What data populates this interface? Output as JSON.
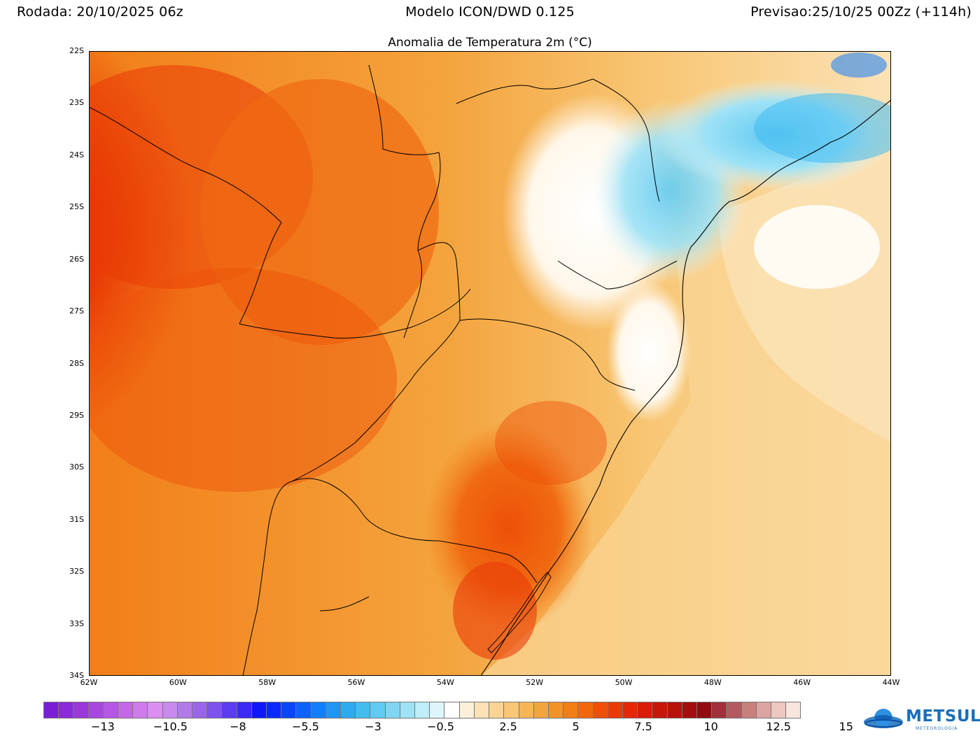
{
  "header": {
    "run": "Rodada: 20/10/2025 06z",
    "model": "Modelo ICON/DWD 0.125",
    "forecast": "Previsao:25/10/25 00Zz (+114h)"
  },
  "map": {
    "title": "Anomalia de Temperatura 2m (°C)",
    "lat_labels": [
      "22S",
      "23S",
      "24S",
      "25S",
      "26S",
      "27S",
      "28S",
      "29S",
      "30S",
      "31S",
      "32S",
      "33S",
      "34S"
    ],
    "lon_labels": [
      "62W",
      "60W",
      "58W",
      "56W",
      "54W",
      "52W",
      "50W",
      "48W",
      "46W",
      "44W"
    ],
    "lat_range": [
      -34,
      -22
    ],
    "lon_range": [
      -62,
      -44
    ]
  },
  "colorbar": {
    "colors": [
      "#7a1ed6",
      "#8a2ad8",
      "#9a38dc",
      "#a846e0",
      "#b657e4",
      "#c468e8",
      "#d07bec",
      "#da8ef0",
      "#c98aee",
      "#b27ae8",
      "#9a66e8",
      "#7e52ec",
      "#5c3cf0",
      "#3a2af4",
      "#1018f8",
      "#0a2aff",
      "#0a46ff",
      "#0c62ff",
      "#147efa",
      "#1e96f4",
      "#2eaaf0",
      "#44bcf0",
      "#60caf2",
      "#7ed6f4",
      "#9ee2f6",
      "#bdeef9",
      "#ddf6fc",
      "#ffffff",
      "#fdf0d8",
      "#fbe2b6",
      "#f9d494",
      "#f8c674",
      "#f6b658",
      "#f4a43e",
      "#f39228",
      "#f27e18",
      "#f0680e",
      "#ee5008",
      "#ea3a06",
      "#e42806",
      "#d81c08",
      "#c8160a",
      "#b8120c",
      "#a40e0e",
      "#900c10",
      "#a0303a",
      "#b45a5e",
      "#c8807c",
      "#dca4a0",
      "#ecc8c0",
      "#f8e6de"
    ],
    "labels": [
      "−13",
      "−10.5",
      "−8",
      "−5.5",
      "−3",
      "−0.5",
      "2.5",
      "5",
      "7.5",
      "10",
      "12.5",
      "15"
    ]
  },
  "logo": {
    "text": "METSUL",
    "sub": "METEOROLOGIA"
  }
}
